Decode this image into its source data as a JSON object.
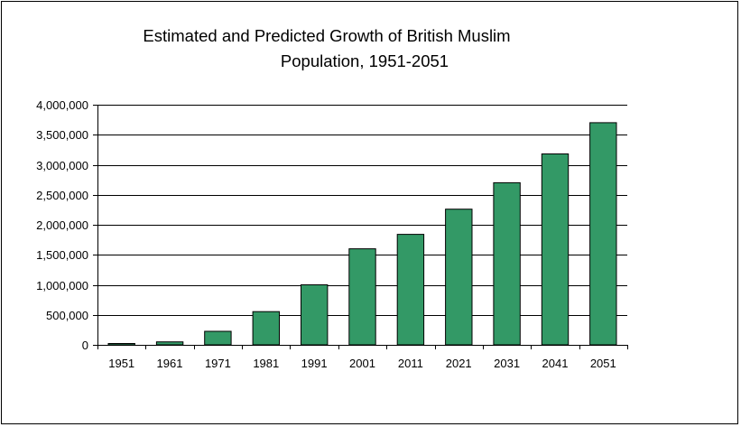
{
  "chart_data": {
    "type": "bar",
    "title": "Estimated and Predicted Growth of British Muslim Population, 1951-2051",
    "title_lines": [
      "Estimated and Predicted Growth of British Muslim",
      "Population, 1951-2051"
    ],
    "xlabel": "",
    "ylabel": "",
    "categories": [
      "1951",
      "1961",
      "1971",
      "1981",
      "1991",
      "2001",
      "2011",
      "2021",
      "2031",
      "2041",
      "2051"
    ],
    "values": [
      23000,
      50000,
      226000,
      553000,
      1000000,
      1600000,
      1840000,
      2260000,
      2700000,
      3180000,
      3700000
    ],
    "ylim": [
      0,
      4000000
    ],
    "yticks": [
      0,
      500000,
      1000000,
      1500000,
      2000000,
      2500000,
      3000000,
      3500000,
      4000000
    ],
    "ytick_labels": [
      "0",
      "500,000",
      "1,000,000",
      "1,500,000",
      "2,000,000",
      "2,500,000",
      "3,000,000",
      "3,500,000",
      "4,000,000"
    ],
    "grid": true,
    "legend": "none",
    "colors": {
      "bar_fill": "#339966",
      "bar_stroke": "#000000",
      "grid": "#000000"
    }
  }
}
